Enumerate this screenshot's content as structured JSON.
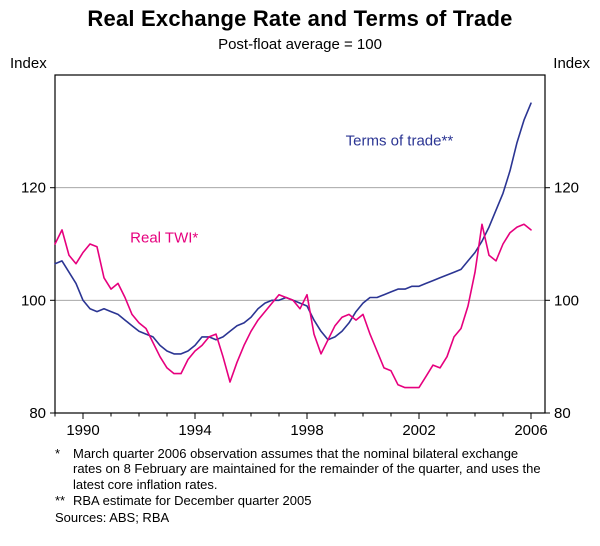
{
  "page": {
    "title": "Real Exchange Rate and Terms of Trade",
    "subtitle": "Post-float average = 100"
  },
  "chart_data": {
    "type": "line",
    "title": "Real Exchange Rate and Terms of Trade",
    "subtitle": "Post-float average = 100",
    "axis_label_left": "Index",
    "axis_label_right": "Index",
    "ylim": [
      80,
      140
    ],
    "xlim": [
      1989,
      2006.5
    ],
    "y_ticks": [
      80,
      100,
      120
    ],
    "x_ticks": [
      1990,
      1994,
      1998,
      2002,
      2006
    ],
    "grid_y": [
      100,
      120
    ],
    "x_minor_step": 1,
    "legend_position": "inline-annotations",
    "grid": true,
    "series": [
      {
        "id": "terms-of-trade",
        "name": "Terms of trade**",
        "color": "#2b3593",
        "x_start": 1989,
        "x_step": 0.25,
        "values": [
          106.5,
          107,
          105,
          103,
          100,
          98.5,
          98,
          98.5,
          98,
          97.5,
          96.5,
          95.5,
          94.5,
          94,
          93.5,
          92,
          91,
          90.5,
          90.5,
          91,
          92,
          93.5,
          93.5,
          93,
          93.5,
          94.5,
          95.5,
          96,
          97,
          98.5,
          99.5,
          100,
          100,
          100.5,
          100,
          99.5,
          99,
          96.5,
          94.5,
          93,
          93.5,
          94.5,
          96,
          98,
          99.5,
          100.5,
          100.5,
          101,
          101.5,
          102,
          102,
          102.5,
          102.5,
          103,
          103.5,
          104,
          104.5,
          105,
          105.5,
          107,
          108.5,
          110.5,
          113,
          116,
          119,
          123,
          128,
          132,
          135
        ]
      },
      {
        "id": "real-twi",
        "name": "Real TWI*",
        "color": "#e6007e",
        "x_start": 1989,
        "x_step": 0.25,
        "values": [
          110,
          112.5,
          108,
          106.5,
          108.5,
          110,
          109.5,
          104,
          102,
          103,
          100.5,
          97.5,
          96,
          95,
          92.5,
          90,
          88,
          87,
          87,
          89.5,
          91,
          92,
          93.5,
          94,
          90,
          85.5,
          89,
          92,
          94.5,
          96.5,
          98,
          99.5,
          101,
          100.5,
          100,
          98.5,
          101,
          94,
          90.5,
          93,
          95.5,
          97,
          97.5,
          96.5,
          97.5,
          94,
          91,
          88,
          87.5,
          85,
          84.5,
          84.5,
          84.5,
          86.5,
          88.5,
          88,
          90,
          93.5,
          95,
          99,
          105,
          113.5,
          108,
          107,
          110,
          112,
          113,
          113.5,
          112.5
        ]
      }
    ],
    "annotations": [
      {
        "text": "Terms of trade**",
        "x": 2001.3,
        "y": 127.5,
        "color": "#2b3593"
      },
      {
        "text": "Real TWI*",
        "x": 1992.9,
        "y": 110.3,
        "color": "#e6007e"
      }
    ]
  },
  "footnotes": [
    {
      "marker": "*",
      "text": "March quarter 2006 observation assumes that the nominal bilateral exchange rates on 8 February are maintained for the remainder of the quarter, and uses the latest core inflation rates."
    },
    {
      "marker": "**",
      "text": "RBA estimate for December quarter 2005"
    }
  ],
  "sources": "Sources: ABS; RBA"
}
